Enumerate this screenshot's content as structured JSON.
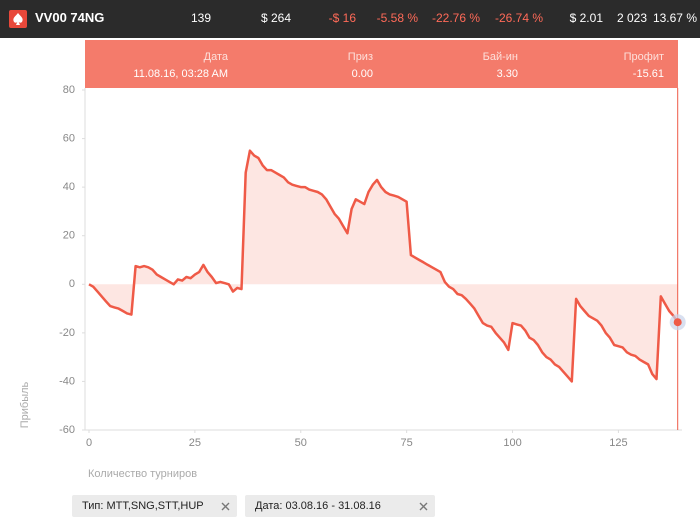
{
  "header": {
    "player": "VV00 74NG",
    "stats": [
      "139",
      "$ 264",
      "-$ 16",
      "-5.58 %",
      "-22.76 %",
      "-26.74 %",
      "$ 2.01",
      "2 023",
      "13.67 %"
    ]
  },
  "tooltip": {
    "columns": [
      {
        "label": "Дата",
        "value": "11.08.16, 03:28 AM"
      },
      {
        "label": "Приз",
        "value": "0.00"
      },
      {
        "label": "Бай-ин",
        "value": "3.30"
      },
      {
        "label": "Профит",
        "value": "-15.61"
      }
    ]
  },
  "chart_data": {
    "type": "area-line",
    "xlabel": "Количество турниров",
    "ylabel": "Прибыль",
    "color": "#ef5a47",
    "fill": "#fde6e2",
    "xlim": [
      0,
      139
    ],
    "ylim": [
      -60,
      80
    ],
    "xticks": [
      0,
      25,
      50,
      75,
      100,
      125
    ],
    "yticks": [
      -60,
      -40,
      -20,
      0,
      20,
      40,
      60,
      80
    ],
    "x": [
      0,
      1,
      2,
      3,
      4,
      5,
      6,
      7,
      8,
      9,
      10,
      11,
      12,
      13,
      14,
      15,
      16,
      17,
      18,
      19,
      20,
      21,
      22,
      23,
      24,
      25,
      26,
      27,
      28,
      29,
      30,
      31,
      32,
      33,
      34,
      35,
      36,
      37,
      38,
      39,
      40,
      41,
      42,
      43,
      44,
      45,
      46,
      47,
      48,
      49,
      50,
      51,
      52,
      53,
      54,
      55,
      56,
      57,
      58,
      59,
      60,
      61,
      62,
      63,
      64,
      65,
      66,
      67,
      68,
      69,
      70,
      71,
      72,
      73,
      74,
      75,
      76,
      77,
      78,
      79,
      80,
      81,
      82,
      83,
      84,
      85,
      86,
      87,
      88,
      89,
      90,
      91,
      92,
      93,
      94,
      95,
      96,
      97,
      98,
      99,
      100,
      101,
      102,
      103,
      104,
      105,
      106,
      107,
      108,
      109,
      110,
      111,
      112,
      113,
      114,
      115,
      116,
      117,
      118,
      119,
      120,
      121,
      122,
      123,
      124,
      125,
      126,
      127,
      128,
      129,
      130,
      131,
      132,
      133,
      134,
      135,
      136,
      137,
      138,
      139
    ],
    "values": [
      0,
      -1,
      -3,
      -5,
      -7,
      -9,
      -9.5,
      -10,
      -11,
      -12,
      -12.5,
      7.5,
      7,
      7.5,
      7,
      6,
      4,
      3,
      2,
      1,
      0,
      2,
      1.5,
      3,
      2.5,
      4,
      5,
      8,
      5,
      3,
      0.5,
      1,
      0.5,
      0,
      -3,
      -1.5,
      -2,
      46,
      55,
      53,
      52,
      49,
      47,
      47,
      46,
      45,
      44,
      42,
      41,
      40.5,
      40,
      40,
      39,
      38.5,
      38,
      37,
      35,
      32,
      29,
      27,
      24,
      21,
      31,
      35,
      34,
      33,
      38,
      41,
      43,
      40,
      38,
      37,
      36.5,
      36,
      35,
      34,
      12,
      11,
      10,
      9,
      8,
      7,
      6,
      5,
      1,
      -1,
      -2,
      -4,
      -4.5,
      -6,
      -8,
      -10,
      -13,
      -16,
      -17,
      -17.5,
      -20,
      -22,
      -24,
      -27,
      -16,
      -16.5,
      -17,
      -19,
      -22,
      -23,
      -25,
      -28,
      -30,
      -31,
      -33,
      -34,
      -36,
      -38,
      -40,
      -6,
      -9,
      -11,
      -13,
      -14,
      -15,
      -17,
      -20,
      -22,
      -25,
      -25.5,
      -26,
      -28,
      -29,
      -29.5,
      -31,
      -32,
      -33,
      -37,
      -39,
      -5,
      -8,
      -11,
      -13,
      -15.61
    ]
  },
  "filters": [
    "Тип: MTT,SNG,STT,HUP",
    "Дата: 03.08.16 - 31.08.16"
  ]
}
